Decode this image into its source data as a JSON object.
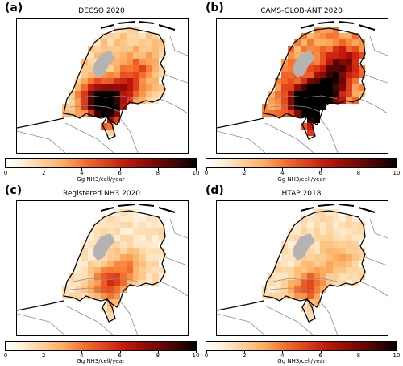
{
  "panels": [
    {
      "letter": "(a)",
      "title": "DECSO 2020"
    },
    {
      "letter": "(b)",
      "title": "CAMS-GLOB-ANT 2020"
    },
    {
      "letter": "(c)",
      "title": "Registered NH3 2020"
    },
    {
      "letter": "(d)",
      "title": "HTAP 2018"
    }
  ],
  "colorbar": {
    "label": "Gg NH3/cell/year",
    "ticks": [
      "0",
      "2",
      "4",
      "6",
      "8",
      "10"
    ],
    "range": [
      0,
      10
    ],
    "colormap": "gist_heat_r"
  },
  "colors": {
    "water_gray": "#b4b4b4",
    "border_gray": "#8c8c8c",
    "coast_black": "#000000"
  }
}
